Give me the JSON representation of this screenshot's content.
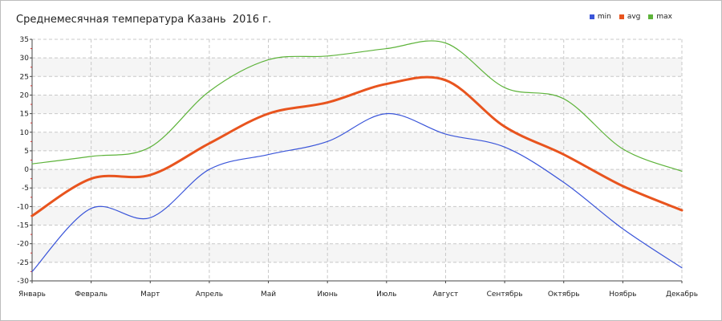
{
  "chart_data": {
    "type": "line",
    "title": "Среднемесячная температура Казань  2016 г.",
    "categories": [
      "Январь",
      "Февраль",
      "Март",
      "Апрель",
      "Май",
      "Июнь",
      "Июль",
      "Август",
      "Сентябрь",
      "Октябрь",
      "Ноябрь",
      "Декабрь"
    ],
    "ylim": [
      -30,
      35
    ],
    "yticks": [
      35,
      30,
      25,
      20,
      15,
      10,
      5,
      0,
      -5,
      -10,
      -15,
      -20,
      -25,
      -30
    ],
    "grid": true,
    "legend_position": "top-right",
    "series": [
      {
        "name": "min",
        "color": "#3a55d9",
        "values": [
          -27.5,
          -10.5,
          -13,
          0,
          4,
          7.5,
          15,
          9.5,
          6,
          -3.5,
          -16,
          -26.5
        ]
      },
      {
        "name": "avg",
        "color": "#e8541e",
        "values": [
          -12.5,
          -2.5,
          -1.5,
          7,
          15,
          18,
          23,
          24,
          11.5,
          4,
          -4.5,
          -11
        ]
      },
      {
        "name": "max",
        "color": "#5db33a",
        "values": [
          1.5,
          3.5,
          6,
          21,
          29.5,
          30.5,
          32.5,
          34,
          22,
          19,
          5.5,
          -0.5
        ]
      }
    ]
  }
}
